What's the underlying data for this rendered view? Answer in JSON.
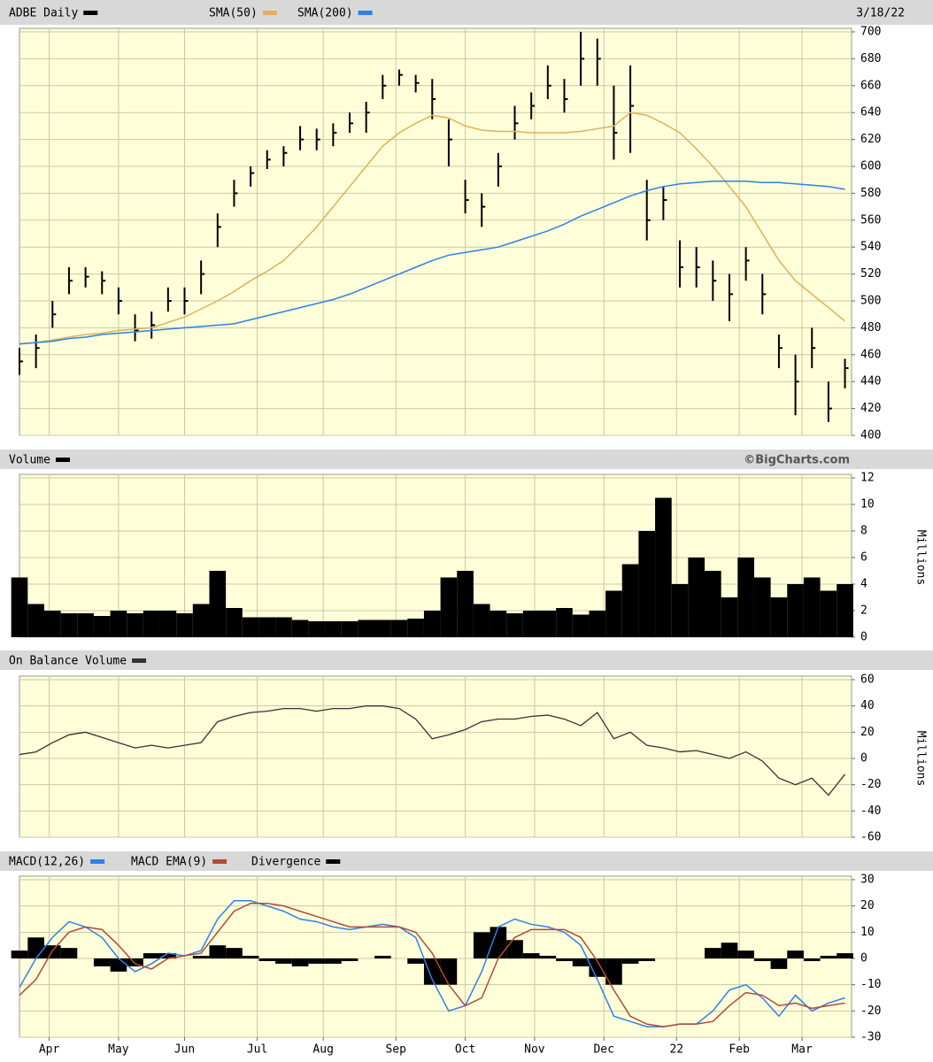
{
  "chart_data": [
    {
      "type": "ohlc",
      "date": "3/18/22",
      "x": [
        0,
        5,
        10,
        15,
        20,
        25,
        30,
        35,
        40,
        45,
        50,
        55,
        60,
        65,
        70,
        75,
        80,
        85,
        90,
        95,
        100,
        105,
        110,
        115,
        120,
        125,
        130,
        135,
        140,
        145,
        150,
        155,
        160,
        165,
        170,
        175,
        180,
        185,
        190,
        195,
        200,
        205,
        210,
        215,
        220,
        225,
        230,
        235,
        240,
        245,
        250
      ],
      "series": [
        {
          "name": "ADBE Daily",
          "color": "#000000",
          "high": [
            465,
            475,
            500,
            525,
            525,
            522,
            510,
            490,
            492,
            510,
            510,
            530,
            565,
            590,
            600,
            612,
            615,
            630,
            628,
            632,
            640,
            648,
            668,
            672,
            668,
            665,
            635,
            590,
            580,
            610,
            645,
            655,
            675,
            665,
            700,
            695,
            660,
            675,
            590,
            585,
            545,
            540,
            530,
            520,
            540,
            520,
            475,
            460,
            480,
            440,
            457
          ],
          "low": [
            445,
            450,
            480,
            505,
            510,
            505,
            490,
            470,
            472,
            492,
            490,
            505,
            540,
            570,
            585,
            598,
            600,
            612,
            612,
            615,
            625,
            625,
            650,
            660,
            655,
            635,
            600,
            565,
            555,
            585,
            620,
            635,
            650,
            640,
            660,
            660,
            605,
            610,
            545,
            560,
            510,
            510,
            500,
            485,
            515,
            490,
            450,
            415,
            450,
            410,
            435
          ],
          "close": [
            455,
            465,
            490,
            515,
            518,
            515,
            500,
            478,
            482,
            500,
            500,
            520,
            555,
            580,
            595,
            605,
            610,
            620,
            620,
            625,
            632,
            640,
            660,
            668,
            662,
            650,
            620,
            575,
            570,
            600,
            632,
            645,
            660,
            650,
            680,
            680,
            625,
            645,
            560,
            575,
            525,
            525,
            515,
            505,
            530,
            505,
            465,
            440,
            465,
            420,
            450
          ]
        },
        {
          "name": "SMA(50)",
          "color": "#deb060",
          "values": [
            468,
            469,
            471,
            473,
            475,
            476,
            478,
            479,
            480,
            484,
            488,
            494,
            500,
            507,
            515,
            522,
            530,
            542,
            555,
            570,
            585,
            600,
            615,
            625,
            632,
            638,
            636,
            630,
            627,
            626,
            626,
            625,
            625,
            625,
            626,
            628,
            630,
            640,
            638,
            632,
            625,
            613,
            600,
            585,
            570,
            550,
            530,
            515,
            505,
            495,
            485
          ]
        },
        {
          "name": "SMA(200)",
          "color": "#2f80e8",
          "values": [
            468,
            469,
            470,
            472,
            473,
            475,
            476,
            477,
            478,
            479,
            480,
            481,
            482,
            483,
            486,
            489,
            492,
            495,
            498,
            501,
            505,
            510,
            515,
            520,
            525,
            530,
            534,
            536,
            538,
            540,
            544,
            548,
            552,
            557,
            563,
            568,
            573,
            578,
            582,
            585,
            587,
            588,
            589,
            589,
            589,
            588,
            588,
            587,
            586,
            585,
            583
          ]
        }
      ],
      "ylim": [
        400,
        700
      ],
      "yticks": [
        400,
        420,
        440,
        460,
        480,
        500,
        520,
        540,
        560,
        580,
        600,
        620,
        640,
        660,
        680,
        700
      ],
      "grid": true
    },
    {
      "type": "bar",
      "credit": "©BigCharts.com",
      "ylabel": "Millions",
      "x": [
        0,
        5,
        10,
        15,
        20,
        25,
        30,
        35,
        40,
        45,
        50,
        55,
        60,
        65,
        70,
        75,
        80,
        85,
        90,
        95,
        100,
        105,
        110,
        115,
        120,
        125,
        130,
        135,
        140,
        145,
        150,
        155,
        160,
        165,
        170,
        175,
        180,
        185,
        190,
        195,
        200,
        205,
        210,
        215,
        220,
        225,
        230,
        235,
        240,
        245,
        250
      ],
      "series": [
        {
          "name": "Volume",
          "color": "#000000",
          "values": [
            4.5,
            2.5,
            2,
            1.8,
            1.8,
            1.6,
            2,
            1.8,
            2,
            2,
            1.8,
            2.5,
            5,
            2.2,
            1.5,
            1.5,
            1.5,
            1.3,
            1.2,
            1.2,
            1.2,
            1.3,
            1.3,
            1.3,
            1.4,
            2,
            4.5,
            5,
            2.5,
            2,
            1.8,
            2,
            2,
            2.2,
            1.7,
            2,
            3.5,
            5.5,
            8,
            10.5,
            4,
            6,
            5,
            3,
            6,
            4.5,
            3,
            4,
            4.5,
            3.5,
            4
          ]
        }
      ],
      "ylim": [
        0,
        12
      ],
      "yticks": [
        0,
        2,
        4,
        6,
        8,
        10,
        12
      ],
      "grid": true
    },
    {
      "type": "line",
      "ylabel": "Millions",
      "x": [
        0,
        5,
        10,
        15,
        20,
        25,
        30,
        35,
        40,
        45,
        50,
        55,
        60,
        65,
        70,
        75,
        80,
        85,
        90,
        95,
        100,
        105,
        110,
        115,
        120,
        125,
        130,
        135,
        140,
        145,
        150,
        155,
        160,
        165,
        170,
        175,
        180,
        185,
        190,
        195,
        200,
        205,
        210,
        215,
        220,
        225,
        230,
        235,
        240,
        245,
        250
      ],
      "series": [
        {
          "name": "On Balance Volume",
          "color": "#333333",
          "values": [
            3,
            5,
            12,
            18,
            20,
            16,
            12,
            8,
            10,
            8,
            10,
            12,
            28,
            32,
            35,
            36,
            38,
            38,
            36,
            38,
            38,
            40,
            40,
            38,
            30,
            15,
            18,
            22,
            28,
            30,
            30,
            32,
            33,
            30,
            25,
            35,
            15,
            20,
            10,
            8,
            5,
            6,
            3,
            0,
            5,
            -2,
            -15,
            -20,
            -15,
            -28,
            -12
          ]
        }
      ],
      "ylim": [
        -60,
        60
      ],
      "yticks": [
        -60,
        -40,
        -20,
        0,
        20,
        40,
        60
      ],
      "grid": true
    },
    {
      "type": "macd",
      "x": [
        0,
        5,
        10,
        15,
        20,
        25,
        30,
        35,
        40,
        45,
        50,
        55,
        60,
        65,
        70,
        75,
        80,
        85,
        90,
        95,
        100,
        105,
        110,
        115,
        120,
        125,
        130,
        135,
        140,
        145,
        150,
        155,
        160,
        165,
        170,
        175,
        180,
        185,
        190,
        195,
        200,
        205,
        210,
        215,
        220,
        225,
        230,
        235,
        240,
        245,
        250
      ],
      "series": [
        {
          "name": "MACD(12,26)",
          "color": "#2f80e8",
          "values": [
            -11,
            0,
            8,
            14,
            12,
            8,
            0,
            -5,
            -2,
            2,
            1,
            3,
            15,
            22,
            22,
            20,
            18,
            15,
            14,
            12,
            11,
            12,
            13,
            12,
            8,
            -8,
            -20,
            -18,
            -5,
            12,
            15,
            13,
            12,
            10,
            5,
            -8,
            -22,
            -24,
            -26,
            -26,
            -25,
            -25,
            -20,
            -12,
            -10,
            -15,
            -22,
            -14,
            -20,
            -17,
            -15
          ]
        },
        {
          "name": "MACD EMA(9)",
          "color": "#b04a3a",
          "values": [
            -14,
            -8,
            3,
            10,
            12,
            11,
            5,
            -2,
            -4,
            0,
            1,
            2,
            10,
            18,
            21,
            21,
            20,
            18,
            16,
            14,
            12,
            12,
            12,
            12,
            10,
            2,
            -10,
            -18,
            -15,
            0,
            8,
            11,
            11,
            11,
            8,
            -1,
            -12,
            -22,
            -25,
            -26,
            -25,
            -25,
            -24,
            -18,
            -13,
            -14,
            -18,
            -17,
            -19,
            -18,
            -17
          ]
        },
        {
          "name": "Divergence",
          "color": "#000000",
          "values": [
            3,
            8,
            5,
            4,
            0,
            -3,
            -5,
            -3,
            2,
            2,
            0,
            1,
            5,
            4,
            1,
            -1,
            -2,
            -3,
            -2,
            -2,
            -1,
            0,
            1,
            0,
            -2,
            -10,
            -10,
            0,
            10,
            12,
            7,
            2,
            1,
            -1,
            -3,
            -7,
            -10,
            -2,
            -1,
            0,
            0,
            0,
            4,
            6,
            3,
            -1,
            -4,
            3,
            -1,
            1,
            2
          ]
        }
      ],
      "ylim": [
        -30,
        30
      ],
      "yticks": [
        -30,
        -20,
        -10,
        0,
        10,
        20,
        30
      ],
      "grid": true,
      "xlim": [
        0,
        252
      ],
      "xticks": [
        {
          "value": 9,
          "label": "Apr"
        },
        {
          "value": 30,
          "label": "May"
        },
        {
          "value": 50,
          "label": "Jun"
        },
        {
          "value": 72,
          "label": "Jul"
        },
        {
          "value": 92,
          "label": "Aug"
        },
        {
          "value": 114,
          "label": "Sep"
        },
        {
          "value": 135,
          "label": "Oct"
        },
        {
          "value": 156,
          "label": "Nov"
        },
        {
          "value": 177,
          "label": "Dec"
        },
        {
          "value": 199,
          "label": "22"
        },
        {
          "value": 218,
          "label": "Feb"
        },
        {
          "value": 237,
          "label": "Mar"
        }
      ]
    }
  ]
}
